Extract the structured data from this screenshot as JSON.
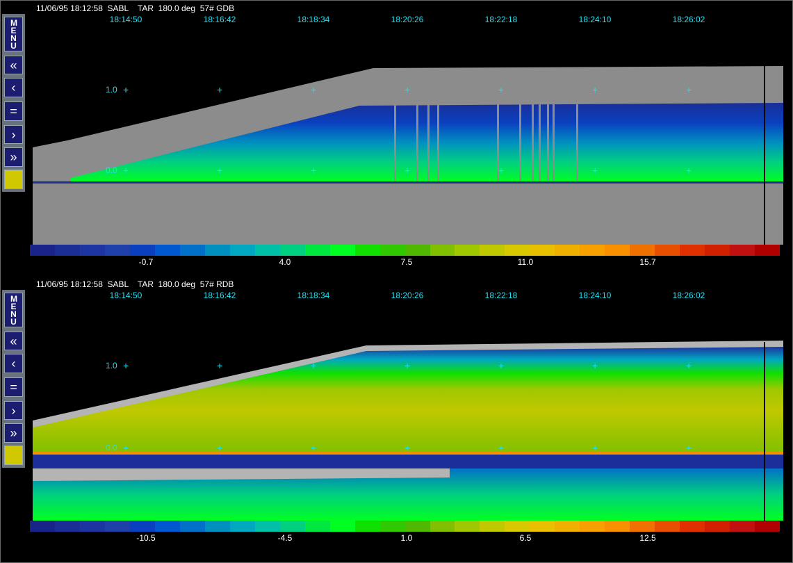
{
  "panels": [
    {
      "header": "11/06/95 18:12:58  SABL    TAR  180.0 deg  57# GDB",
      "times": [
        "18:14:50",
        "18:16:42",
        "18:18:34",
        "18:20:26",
        "18:22:18",
        "18:24:10",
        "18:26:02"
      ],
      "y_labels": [
        "1.0",
        "0.0"
      ],
      "colorbar_labels": [
        "-0.7",
        "4.0",
        "7.5",
        "11.0",
        "15.7"
      ]
    },
    {
      "header": "11/06/95 18:12:58  SABL    TAR  180.0 deg  57# RDB",
      "times": [
        "18:14:50",
        "18:16:42",
        "18:18:34",
        "18:20:26",
        "18:22:18",
        "18:24:10",
        "18:26:02"
      ],
      "y_labels": [
        "1.0",
        "0.0"
      ],
      "colorbar_labels": [
        "-10.5",
        "-4.5",
        "1.0",
        "6.5",
        "12.5"
      ]
    }
  ],
  "menu": {
    "menu_label": "MENU",
    "first": "«",
    "prev": "‹",
    "equal": "=",
    "next": "›",
    "last": "»"
  },
  "colors": [
    "#18248a",
    "#1a2e96",
    "#1c35a0",
    "#1e40a8",
    "#0a40c0",
    "#0058d0",
    "#0070c8",
    "#0090c0",
    "#00a8c0",
    "#00c0a8",
    "#00d080",
    "#00e840",
    "#00ff20",
    "#10e000",
    "#30c800",
    "#50b800",
    "#80c000",
    "#a0c800",
    "#c0c800",
    "#d8c800",
    "#e8c000",
    "#f0b000",
    "#f8a000",
    "#f89000",
    "#f07000",
    "#e85000",
    "#e03000",
    "#d02000",
    "#c01010",
    "#b00000"
  ]
}
